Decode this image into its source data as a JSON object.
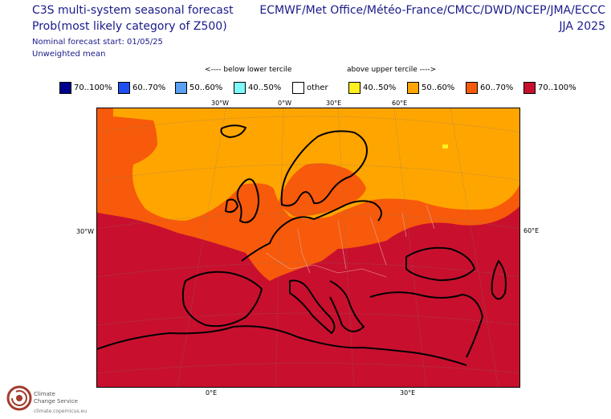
{
  "header": {
    "title_line1": "C3S multi-system seasonal forecast",
    "title_line2": "Prob(most likely category of Z500)",
    "start": "Nominal forecast start: 01/05/25",
    "weighting": "Unweighted mean",
    "models": "ECMWF/Met Office/Météo-France/CMCC/DWD/NCEP/JMA/ECCC",
    "season": "JJA 2025"
  },
  "legend": {
    "below_label": "<---- below lower tercile",
    "above_label": "above upper tercile ---->",
    "items": [
      {
        "label": "70..100%",
        "color": "#00008c"
      },
      {
        "label": "60..70%",
        "color": "#1f4ff0"
      },
      {
        "label": "50..60%",
        "color": "#5aa0f2"
      },
      {
        "label": "40..50%",
        "color": "#7ef8f8"
      },
      {
        "label": "other",
        "color": "#ffffff"
      },
      {
        "label": "40..50%",
        "color": "#ffef1e"
      },
      {
        "label": "50..60%",
        "color": "#ffa500"
      },
      {
        "label": "60..70%",
        "color": "#f75a0a"
      },
      {
        "label": "70..100%",
        "color": "#c8102e"
      }
    ]
  },
  "map": {
    "top_ticks": [
      "30°W",
      "0°W",
      "30°E",
      "60°E"
    ],
    "left_tick": "30°W",
    "right_tick": "60°E",
    "bottom_ticks": [
      "0°E",
      "30°E"
    ]
  },
  "logo": {
    "line1": "Climate",
    "line2": "Change Service",
    "url": "climate.copernicus.eu"
  }
}
